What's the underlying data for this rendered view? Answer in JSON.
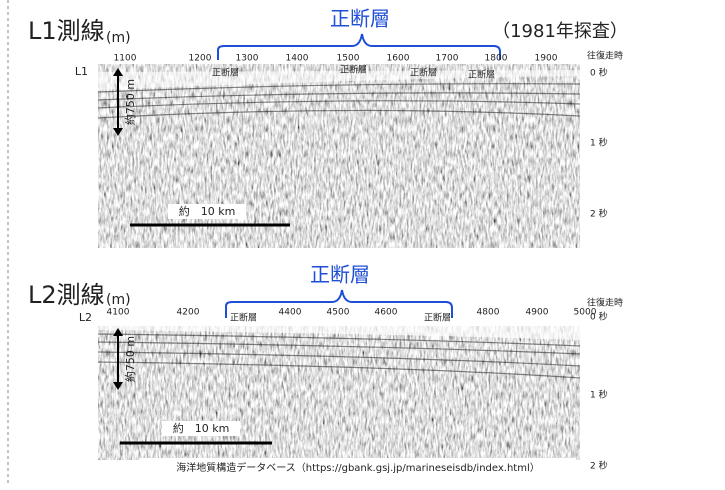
{
  "panel1": {
    "title": "L1測線",
    "unit": "(m)",
    "fault_heading": "正断層",
    "survey": "（1981年探査）",
    "line_label": "L1",
    "x_labels": [
      "1100",
      "1200",
      "1300",
      "1400",
      "1500",
      "1600",
      "1700",
      "1800",
      "1900"
    ],
    "time_heading": "往復走時",
    "time_labels": [
      "0 秒",
      "1 秒",
      "2 秒"
    ],
    "fault_labels": [
      "正断層",
      "正断層",
      "正断層",
      "正断層"
    ],
    "depth_label": "約750 m",
    "scale_label": "約　10 km"
  },
  "panel2": {
    "title": "L2測線",
    "unit": "(m)",
    "fault_heading": "正断層",
    "line_label": "L2",
    "x_labels": [
      "4100",
      "4200",
      "4400",
      "4500",
      "4600",
      "4800",
      "4900",
      "5000"
    ],
    "time_heading": "往復走時",
    "time_labels": [
      "0 秒",
      "1 秒",
      "2 秒"
    ],
    "fault_labels": [
      "正断層",
      "正断層"
    ],
    "depth_label": "約750 m",
    "scale_label": "約　10 km",
    "source": "海洋地質構造データベース（https://gbank.gsj.jp/marineseisdb/index.html）"
  }
}
